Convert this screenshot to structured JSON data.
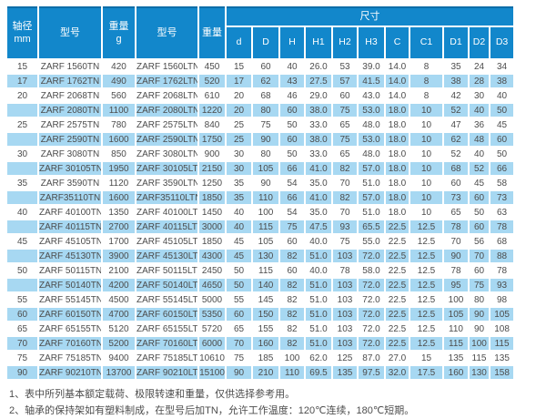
{
  "colors": {
    "header_bg": "#1287cb",
    "header_top_edge": "#0d6ea9",
    "row_alt_bg": "#a7d8f2",
    "text": "#4c4c4c"
  },
  "table": {
    "header": {
      "shaft_label": "轴径",
      "shaft_unit": "mm",
      "model_label_1": "型号",
      "weight_label_1": "重量",
      "weight_unit_1": "g",
      "model_label_2": "型号",
      "weight_label_2": "重量",
      "size_group_label": "尺寸",
      "dim_labels": [
        "d",
        "D",
        "H",
        "H1",
        "H2",
        "H3",
        "C",
        "C1",
        "D1",
        "D2",
        "D3"
      ]
    },
    "rows": [
      [
        "15",
        "ZARF 1560TN",
        "420",
        "ZARF 1560LTN",
        "450",
        "15",
        "60",
        "40",
        "26.0",
        "53",
        "39.0",
        "14.0",
        "8",
        "35",
        "24",
        "34"
      ],
      [
        "17",
        "ZARF 1762TN",
        "490",
        "ZARF 1762LTN",
        "520",
        "17",
        "62",
        "43",
        "27.5",
        "57",
        "41.5",
        "14.0",
        "8",
        "38",
        "28",
        "38"
      ],
      [
        "20",
        "ZARF 2068TN",
        "560",
        "ZARF 2068LTN",
        "610",
        "20",
        "68",
        "46",
        "29.0",
        "60",
        "43.0",
        "14.0",
        "8",
        "42",
        "30",
        "40"
      ],
      [
        "",
        "ZARF 2080TN",
        "1100",
        "ZARF 2080LTN",
        "1220",
        "20",
        "80",
        "60",
        "38.0",
        "75",
        "53.0",
        "18.0",
        "10",
        "52",
        "40",
        "50"
      ],
      [
        "25",
        "ZARF 2575TN",
        "780",
        "ZARF 2575LTN",
        "840",
        "25",
        "75",
        "50",
        "33.0",
        "65",
        "48.0",
        "18.0",
        "10",
        "47",
        "36",
        "45"
      ],
      [
        "",
        "ZARF 2590TN",
        "1600",
        "ZARF 2590LTN",
        "1750",
        "25",
        "90",
        "60",
        "38.0",
        "75",
        "53.0",
        "18.0",
        "10",
        "62",
        "48",
        "60"
      ],
      [
        "30",
        "ZARF 3080TN",
        "850",
        "ZARF 3080LTN",
        "900",
        "30",
        "80",
        "50",
        "33.0",
        "65",
        "48.0",
        "18.0",
        "10",
        "52",
        "40",
        "50"
      ],
      [
        "",
        "ZARF 30105TN",
        "1950",
        "ZARF 30105LTN",
        "2150",
        "30",
        "105",
        "66",
        "41.0",
        "82",
        "57.0",
        "18.0",
        "10",
        "68",
        "52",
        "66"
      ],
      [
        "35",
        "ZARF 3590TN",
        "1120",
        "ZARF 3590LTN",
        "1250",
        "35",
        "90",
        "54",
        "35.0",
        "70",
        "51.0",
        "18.0",
        "10",
        "60",
        "45",
        "58"
      ],
      [
        "",
        "ZARF35110TN",
        "1600",
        "ZARF35110LTN",
        "1850",
        "35",
        "110",
        "66",
        "41.0",
        "82",
        "57.0",
        "18.0",
        "10",
        "73",
        "60",
        "73"
      ],
      [
        "40",
        "ZARF 40100TN",
        "1350",
        "ZARF 40100LTN",
        "1450",
        "40",
        "100",
        "54",
        "35.0",
        "70",
        "51.0",
        "18.0",
        "10",
        "65",
        "50",
        "63"
      ],
      [
        "",
        "ZARF 40115TN",
        "2700",
        "ZARF 40115LTN",
        "3000",
        "40",
        "115",
        "75",
        "47.5",
        "93",
        "65.5",
        "22.5",
        "12.5",
        "78",
        "60",
        "78"
      ],
      [
        "45",
        "ZARF 45105TN",
        "1700",
        "ZARF 45105LTN",
        "1850",
        "45",
        "105",
        "60",
        "40.0",
        "75",
        "55.0",
        "22.5",
        "12.5",
        "70",
        "56",
        "68"
      ],
      [
        "",
        "ZARF 45130TN",
        "3900",
        "ZARF 45130LTN",
        "4300",
        "45",
        "130",
        "82",
        "51.0",
        "103",
        "72.0",
        "22.5",
        "12.5",
        "90",
        "70",
        "88"
      ],
      [
        "50",
        "ZARF 50115TN",
        "2100",
        "ZARF 50115LTN",
        "2450",
        "50",
        "115",
        "60",
        "40.0",
        "78",
        "58.0",
        "22.5",
        "12.5",
        "78",
        "60",
        "78"
      ],
      [
        "",
        "ZARF 50140TN",
        "4200",
        "ZARF 50140LTN",
        "4650",
        "50",
        "140",
        "82",
        "51.0",
        "103",
        "72.0",
        "22.5",
        "12.5",
        "95",
        "75",
        "93"
      ],
      [
        "55",
        "ZARF 55145TN",
        "4500",
        "ZARF 55145LTN",
        "5000",
        "55",
        "145",
        "82",
        "51.0",
        "103",
        "72.0",
        "22.5",
        "12.5",
        "100",
        "80",
        "98"
      ],
      [
        "60",
        "ZARF 60150TN",
        "4700",
        "ZARF 60150LTN",
        "5350",
        "60",
        "150",
        "82",
        "51.0",
        "103",
        "72.0",
        "22.5",
        "12.5",
        "105",
        "90",
        "105"
      ],
      [
        "65",
        "ZARF 65155TN",
        "5120",
        "ZARF 65155LTN",
        "5720",
        "65",
        "155",
        "82",
        "51.0",
        "103",
        "72.0",
        "22.5",
        "12.5",
        "110",
        "90",
        "108"
      ],
      [
        "70",
        "ZARF 70160TN",
        "5200",
        "ZARF 70160LTN",
        "6000",
        "70",
        "160",
        "82",
        "51.0",
        "103",
        "72.0",
        "22.5",
        "12.5",
        "115",
        "100",
        "115"
      ],
      [
        "75",
        "ZARF 75185TN",
        "9400",
        "ZARF 75185LTN",
        "10610",
        "75",
        "185",
        "100",
        "62.0",
        "125",
        "87.0",
        "27.0",
        "15",
        "135",
        "115",
        "135"
      ],
      [
        "90",
        "ZARF 90210TN",
        "13700",
        "ZARF 90210LTN",
        "15100",
        "90",
        "210",
        "110",
        "69.5",
        "135",
        "97.5",
        "32.0",
        "17.5",
        "160",
        "130",
        "158"
      ]
    ]
  },
  "notes": [
    "1、表中所列基本额定载荷、极限转速和重量，仅供选择参考用。",
    "2、轴承的保持架如有塑料制成，在型号后加TN，允许工作温度：120℃连续，180℃短期。"
  ]
}
